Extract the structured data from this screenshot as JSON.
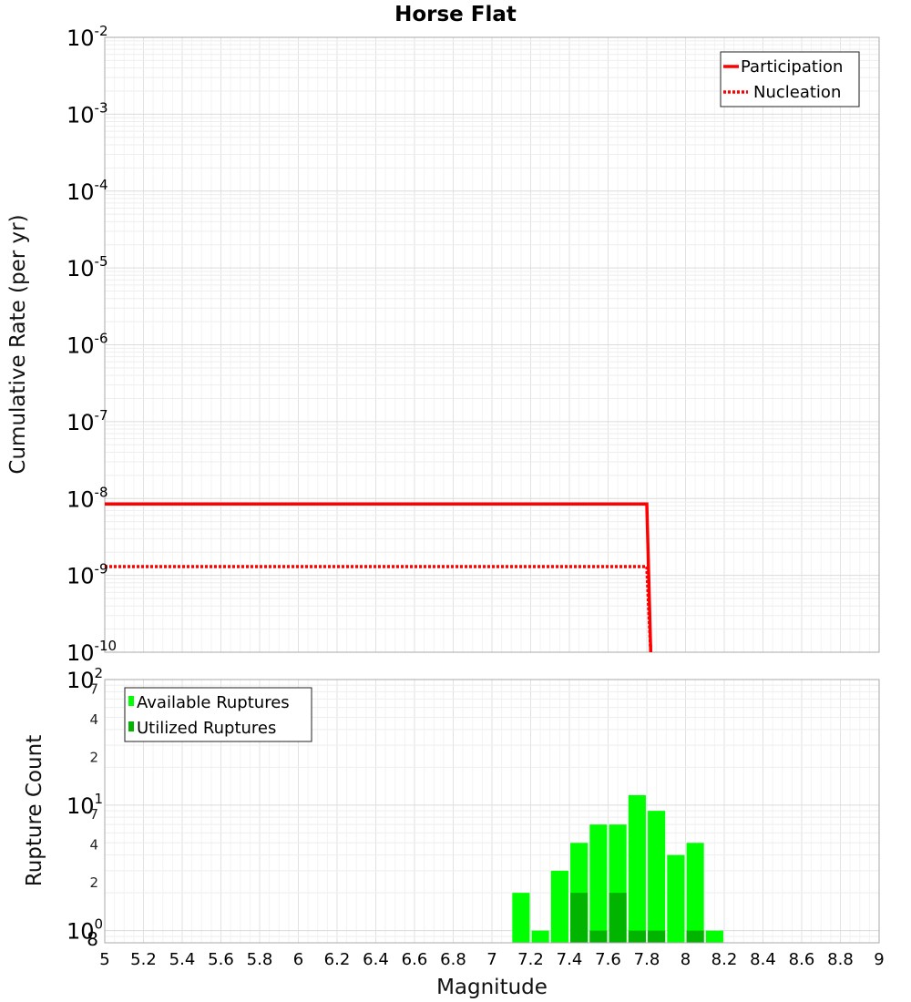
{
  "chart_data": [
    {
      "type": "line",
      "title": "Horse Flat",
      "ylabel": "Cumulative Rate (per yr)",
      "xlim": [
        5,
        9
      ],
      "ylim": [
        1e-10,
        0.01
      ],
      "yscale": "log",
      "grid": true,
      "legend_position": "top-right",
      "y_tick_labels": [
        {
          "base": "10",
          "exp": "-2"
        },
        {
          "base": "10",
          "exp": "-3"
        },
        {
          "base": "10",
          "exp": "-4"
        },
        {
          "base": "10",
          "exp": "-5"
        },
        {
          "base": "10",
          "exp": "-6"
        },
        {
          "base": "10",
          "exp": "-7"
        },
        {
          "base": "10",
          "exp": "-8"
        },
        {
          "base": "10",
          "exp": "-9"
        },
        {
          "base": "10",
          "exp": "-10"
        }
      ],
      "series": [
        {
          "name": "Participation",
          "color": "#ff0000",
          "style": "solid",
          "x": [
            5.0,
            7.8,
            7.82
          ],
          "y": [
            8.5e-09,
            8.5e-09,
            1e-10
          ]
        },
        {
          "name": "Nucleation",
          "color": "#ff0000",
          "style": "dotted",
          "x": [
            5.0,
            7.8,
            7.82
          ],
          "y": [
            1.3e-09,
            1.3e-09,
            1e-10
          ]
        }
      ]
    },
    {
      "type": "bar",
      "xlabel": "Magnitude",
      "ylabel": "Rupture Count",
      "xlim": [
        5,
        9
      ],
      "ylim": [
        0.8,
        100
      ],
      "yscale": "log",
      "grid": true,
      "legend_position": "top-left",
      "x_ticks": [
        "5",
        "5.2",
        "5.4",
        "5.6",
        "5.8",
        "6",
        "6.2",
        "6.4",
        "6.6",
        "6.8",
        "7",
        "7.2",
        "7.4",
        "7.6",
        "7.8",
        "8",
        "8.2",
        "8.4",
        "8.6",
        "8.8",
        "9"
      ],
      "y_tick_labels": [
        {
          "base": "10",
          "exp": "2"
        },
        {
          "base": "10",
          "exp": "1"
        },
        {
          "base": "10",
          "exp": "0"
        }
      ],
      "y_minor_labels": [
        {
          "value": 70,
          "label": "7"
        },
        {
          "value": 40,
          "label": "4"
        },
        {
          "value": 20,
          "label": "2"
        },
        {
          "value": 7,
          "label": "7"
        },
        {
          "value": 4,
          "label": "4"
        },
        {
          "value": 2,
          "label": "2"
        },
        {
          "value": 0.8,
          "label": "8"
        }
      ],
      "bar_width": 0.09,
      "categories": [
        7.15,
        7.25,
        7.35,
        7.45,
        7.55,
        7.65,
        7.75,
        7.85,
        7.95,
        8.05,
        8.15
      ],
      "series": [
        {
          "name": "Available Ruptures",
          "color": "#00ff00",
          "values": [
            2,
            1,
            3,
            5,
            7,
            7,
            12,
            9,
            4,
            5,
            1
          ]
        },
        {
          "name": "Utilized Ruptures",
          "color": "#00b400",
          "values": [
            0,
            0,
            0,
            2,
            1,
            2,
            1,
            1,
            0,
            1,
            0
          ]
        }
      ]
    }
  ]
}
